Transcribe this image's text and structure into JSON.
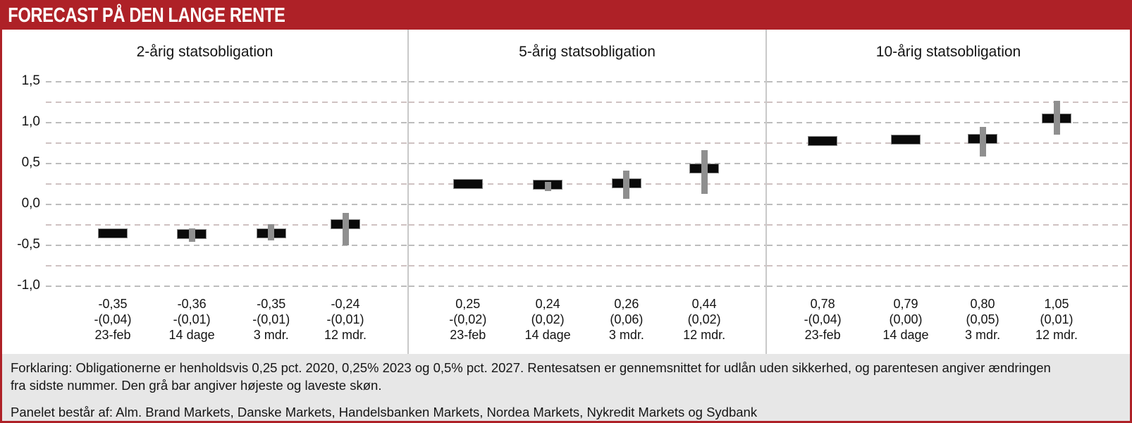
{
  "header": {
    "title": "FORECAST PÅ DEN LANGE RENTE"
  },
  "chart_data": {
    "type": "candlestick-forecast",
    "unit": "pct.",
    "grid": "dashed horizontal every 0.25",
    "y_axis": {
      "min": -1.0,
      "max": 1.5,
      "tick_step": 0.5,
      "ticks": [
        {
          "value": 1.5,
          "label": "1,5"
        },
        {
          "value": 1.0,
          "label": "1,0"
        },
        {
          "value": 0.5,
          "label": "0,5"
        },
        {
          "value": 0.0,
          "label": "0,0"
        },
        {
          "value": -0.5,
          "label": "-0,5"
        },
        {
          "value": -1.0,
          "label": "-1,0"
        }
      ]
    },
    "panels": [
      {
        "title": "2-årig statsobligation",
        "points": [
          {
            "value": -0.35,
            "value_label": "-0,35",
            "change_label": "-(0,04)",
            "period": "23-feb",
            "range": null
          },
          {
            "value": -0.36,
            "value_label": "-0,36",
            "change_label": "-(0,01)",
            "period": "14 dage",
            "range": {
              "high": -0.29,
              "low": -0.46
            }
          },
          {
            "value": -0.35,
            "value_label": "-0,35",
            "change_label": "-(0,01)",
            "period": "3 mdr.",
            "range": {
              "high": -0.24,
              "low": -0.44
            }
          },
          {
            "value": -0.24,
            "value_label": "-0,24",
            "change_label": "-(0,01)",
            "period": "12 mdr.",
            "range": {
              "high": -0.1,
              "low": -0.5
            }
          }
        ]
      },
      {
        "title": "5-årig statsobligation",
        "points": [
          {
            "value": 0.25,
            "value_label": "0,25",
            "change_label": "-(0,02)",
            "period": "23-feb",
            "range": null
          },
          {
            "value": 0.24,
            "value_label": "0,24",
            "change_label": "(0,02)",
            "period": "14 dage",
            "range": {
              "high": 0.28,
              "low": 0.16
            }
          },
          {
            "value": 0.26,
            "value_label": "0,26",
            "change_label": "(0,06)",
            "period": "3 mdr.",
            "range": {
              "high": 0.41,
              "low": 0.07
            }
          },
          {
            "value": 0.44,
            "value_label": "0,44",
            "change_label": "(0,02)",
            "period": "12 mdr.",
            "range": {
              "high": 0.66,
              "low": 0.13
            }
          }
        ]
      },
      {
        "title": "10-årig statsobligation",
        "points": [
          {
            "value": 0.78,
            "value_label": "0,78",
            "change_label": "-(0,04)",
            "period": "23-feb",
            "range": null
          },
          {
            "value": 0.79,
            "value_label": "0,79",
            "change_label": "(0,00)",
            "period": "14 dage",
            "range": null
          },
          {
            "value": 0.8,
            "value_label": "0,80",
            "change_label": "(0,05)",
            "period": "3 mdr.",
            "range": {
              "high": 0.95,
              "low": 0.59
            }
          },
          {
            "value": 1.05,
            "value_label": "1,05",
            "change_label": "(0,01)",
            "period": "12 mdr.",
            "range": {
              "high": 1.27,
              "low": 0.85
            }
          }
        ]
      }
    ]
  },
  "footer": {
    "explanation_line1": "Forklaring: Obligationerne er henholdsvis 0,25 pct. 2020, 0,25% 2023 og 0,5% pct. 2027. Rentesatsen er gennemsnittet for udlån uden sikkerhed, og parentesen angiver ændringen",
    "explanation_line2": "fra sidste nummer. Den grå bar angiver højeste og laveste skøn.",
    "panel_line": "Panelet består af: Alm. Brand Markets, Danske Markets, Handelsbanken Markets, Nordea Markets, Nykredit Markets og Sydbank"
  },
  "colors": {
    "header_red": "#ae2127",
    "border_red": "#ae2127",
    "bar_black": "#0a0a0a",
    "whisker_gray": "#8f8f8f",
    "grid_major": "#bdbdbd",
    "grid_minor": "#cfc2c2",
    "divider_gray": "#c9c9c9",
    "footer_bg": "#e7e7e7",
    "text_dark": "#141414"
  }
}
